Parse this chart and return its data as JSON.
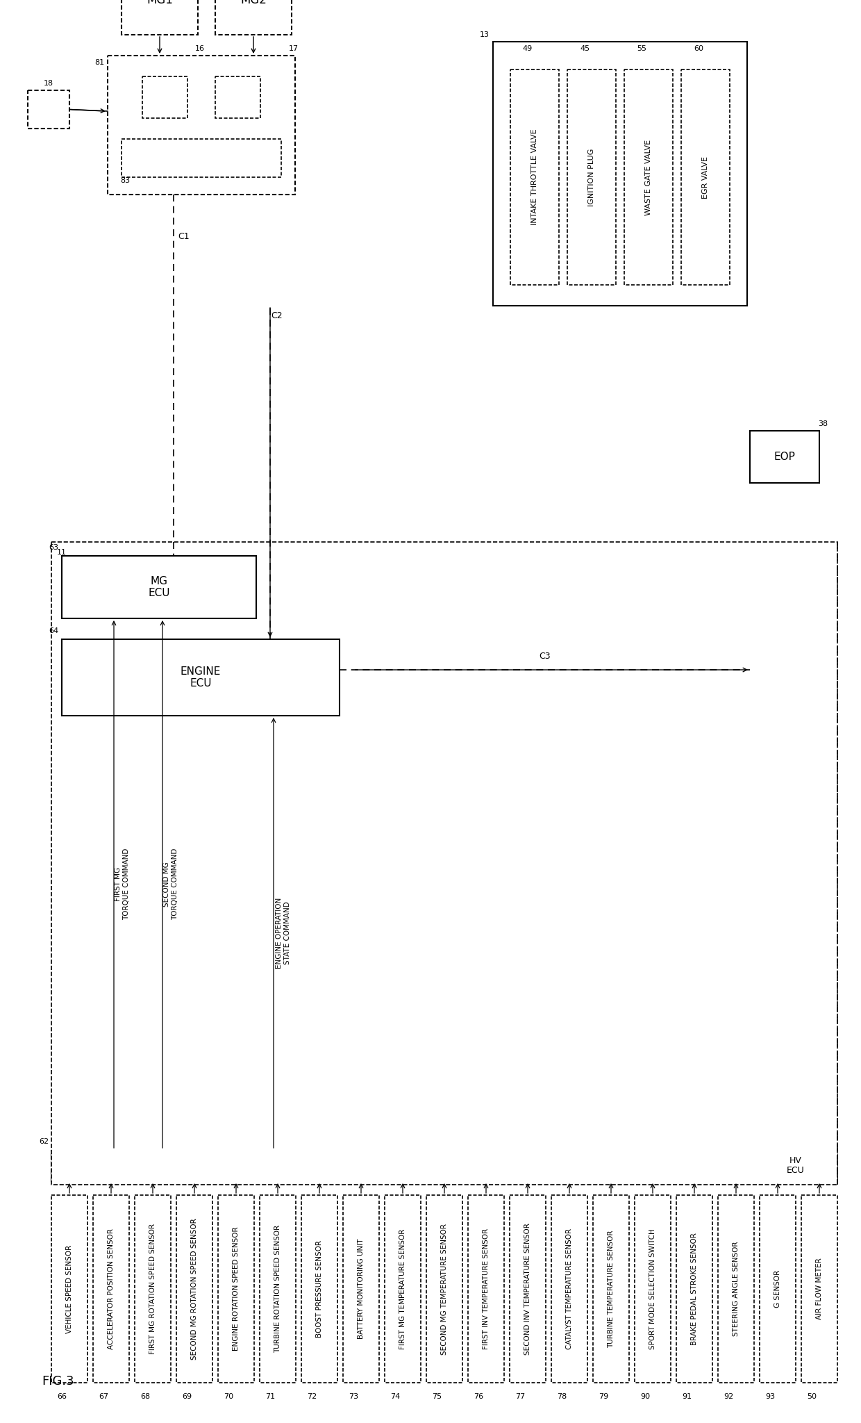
{
  "title": "FIG.3",
  "bg_color": "#ffffff",
  "sensors": [
    {
      "id": "66",
      "label": "VEHICLE SPEED SENSOR"
    },
    {
      "id": "67",
      "label": "ACCELERATOR POSITION SENSOR"
    },
    {
      "id": "68",
      "label": "FIRST MG ROTATION SPEED SENSOR"
    },
    {
      "id": "69",
      "label": "SECOND MG ROTATION SPEED SENSOR"
    },
    {
      "id": "70",
      "label": "ENGINE ROTATION SPEED SENSOR"
    },
    {
      "id": "71",
      "label": "TURBINE ROTATION SPEED SENSOR"
    },
    {
      "id": "72",
      "label": "BOOST PRESSURE SENSOR"
    },
    {
      "id": "73",
      "label": "BATTERY MONITORING UNIT"
    },
    {
      "id": "74",
      "label": "FIRST MG TEMPERATURE SENSOR"
    },
    {
      "id": "75",
      "label": "SECOND MG TEMPERATURE SENSOR"
    },
    {
      "id": "76",
      "label": "FIRST INV TEMPERATURE SENSOR"
    },
    {
      "id": "77",
      "label": "SECOND INV TEMPERATURE SENSOR"
    },
    {
      "id": "78",
      "label": "CATALYST TEMPERATURE SENSOR"
    },
    {
      "id": "79",
      "label": "TURBINE TEMPERATURE SENSOR"
    },
    {
      "id": "90",
      "label": "SPORT MODE SELECTION SWITCH"
    },
    {
      "id": "91",
      "label": "BRAKE PEDAL STROKE SENSOR"
    },
    {
      "id": "92",
      "label": "STEERING ANGLE SENSOR"
    },
    {
      "id": "93",
      "label": "G SENSOR"
    },
    {
      "id": "50",
      "label": "AIR FLOW METER"
    }
  ],
  "actuators": [
    {
      "id": "49",
      "label": "INTAKE THROTTLE VALVE"
    },
    {
      "id": "45",
      "label": "IGNITION PLUG"
    },
    {
      "id": "55",
      "label": "WASTE GATE VALVE"
    },
    {
      "id": "60",
      "label": "EGR VALVE"
    }
  ]
}
